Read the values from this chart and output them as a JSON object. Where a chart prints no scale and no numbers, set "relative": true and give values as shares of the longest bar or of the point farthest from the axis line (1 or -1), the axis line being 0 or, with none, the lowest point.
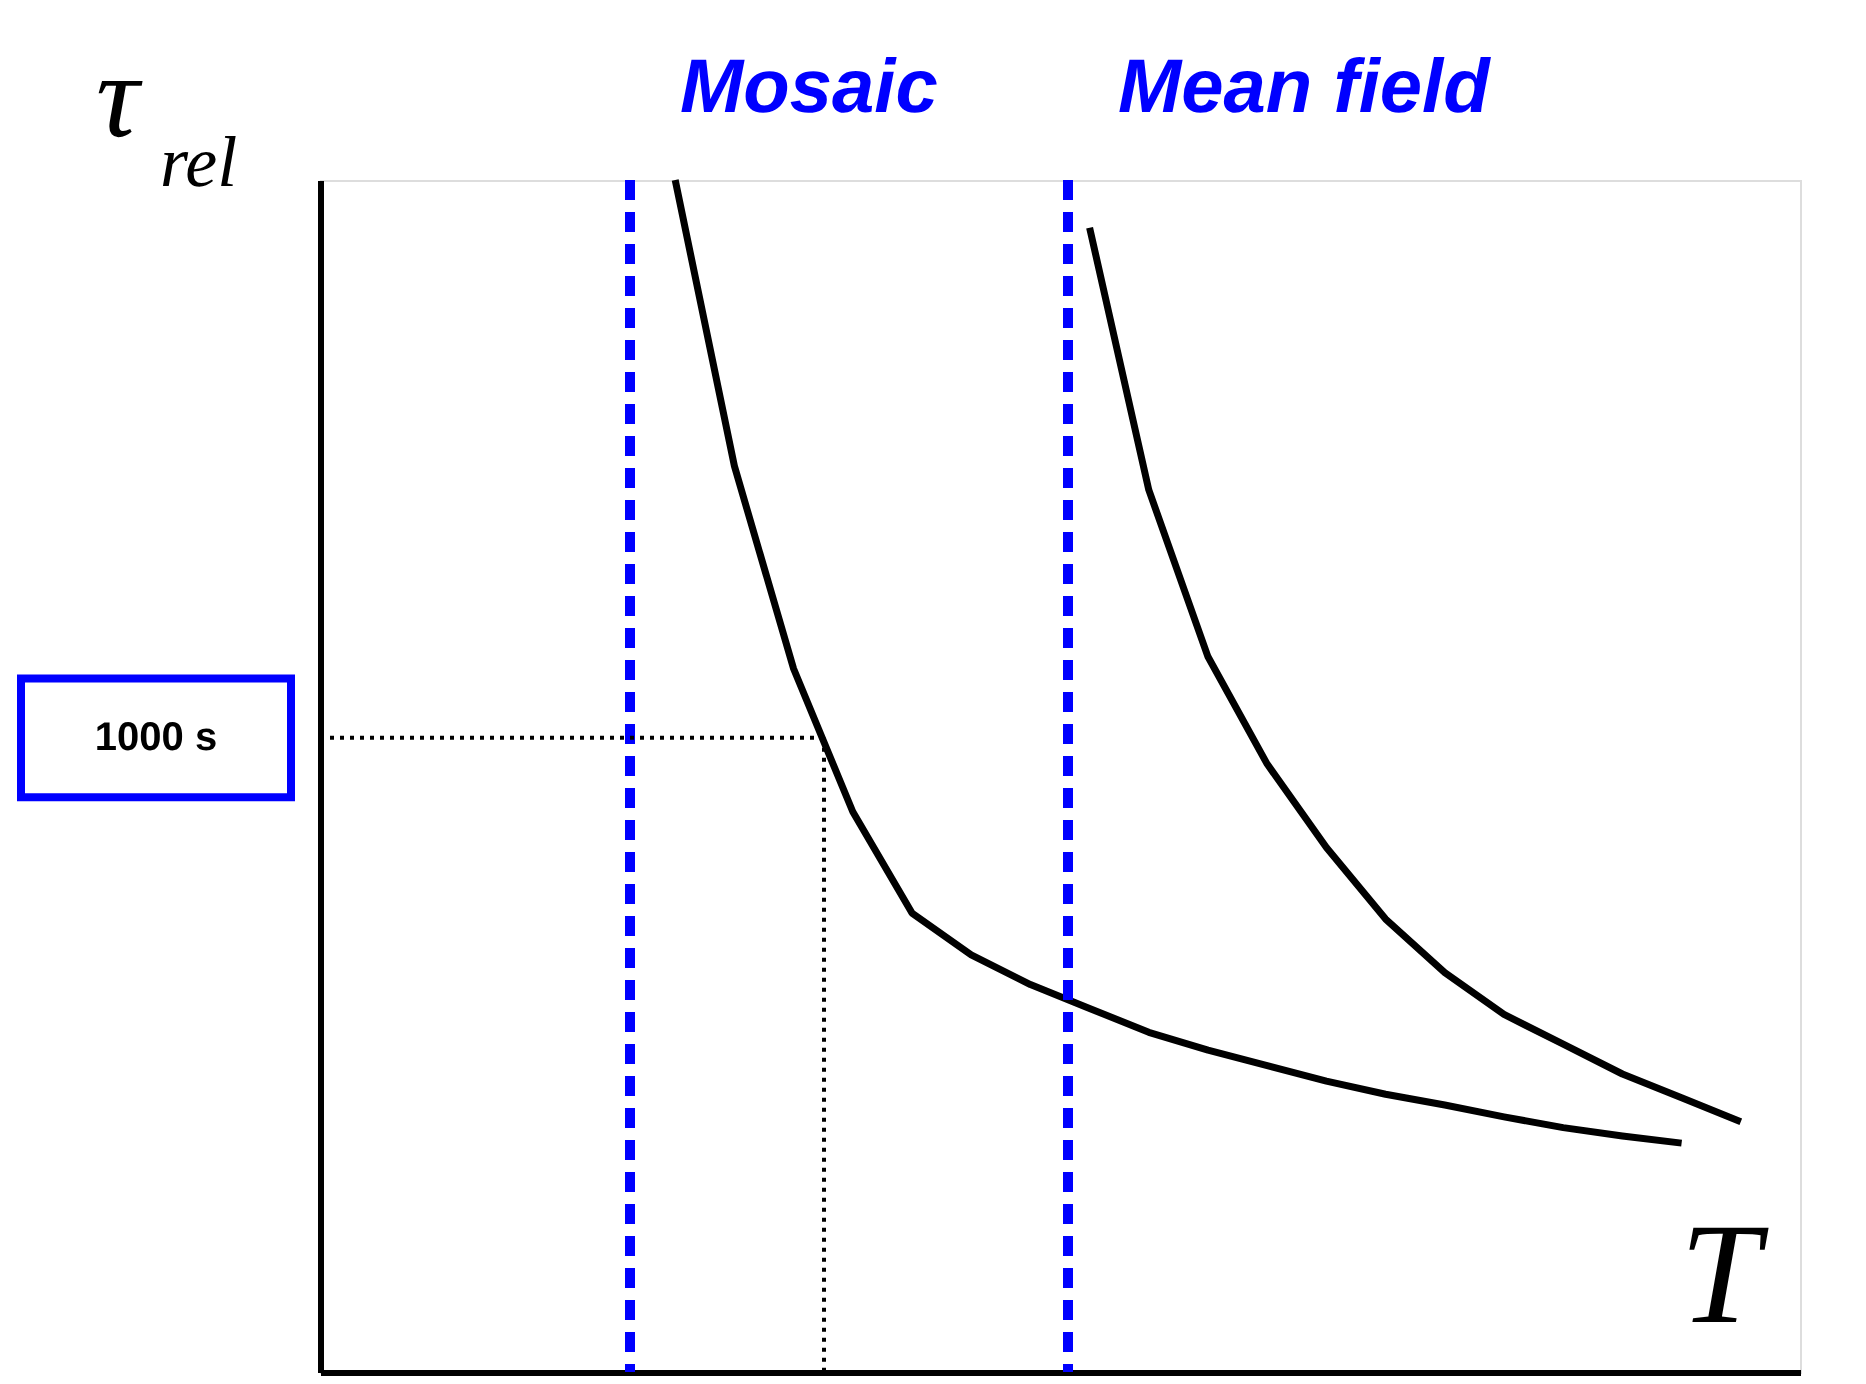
{
  "chart_data": {
    "type": "line",
    "relative": true,
    "xlabel": "T",
    "ylabel": "τ$_{rel}$",
    "marker": "none",
    "line_style": "solid",
    "categories": [
      null,
      null,
      null,
      null,
      null,
      null,
      null,
      null,
      null,
      null,
      null,
      null,
      null,
      null,
      null,
      null,
      null,
      null,
      null,
      null,
      null,
      null,
      null,
      null,
      null,
      null
    ],
    "series": [
      {
        "color": "#000000",
        "values": [
          null,
          null,
          null,
          null,
          null,
          null,
          1.0,
          0.76,
          0.59,
          0.47,
          0.385,
          0.35,
          0.325,
          0.305,
          0.285,
          0.27,
          0.257,
          0.244,
          0.233,
          0.224,
          0.214,
          0.205,
          0.198,
          0.192,
          null,
          null
        ]
      },
      {
        "color": "#000000",
        "values": [
          null,
          null,
          null,
          null,
          null,
          null,
          null,
          null,
          null,
          null,
          null,
          null,
          null,
          0.96,
          0.74,
          0.6,
          0.51,
          0.44,
          0.38,
          0.335,
          0.3,
          0.275,
          0.25,
          0.23,
          0.21,
          null
        ]
      }
    ],
    "ref_lines": [
      {
        "axis": "y",
        "value": 0.532,
        "label": "1000 s",
        "color": "#000000",
        "line_style": "dotted"
      }
    ],
    "annotations": [
      "Mosaic",
      "Mean field"
    ]
  }
}
